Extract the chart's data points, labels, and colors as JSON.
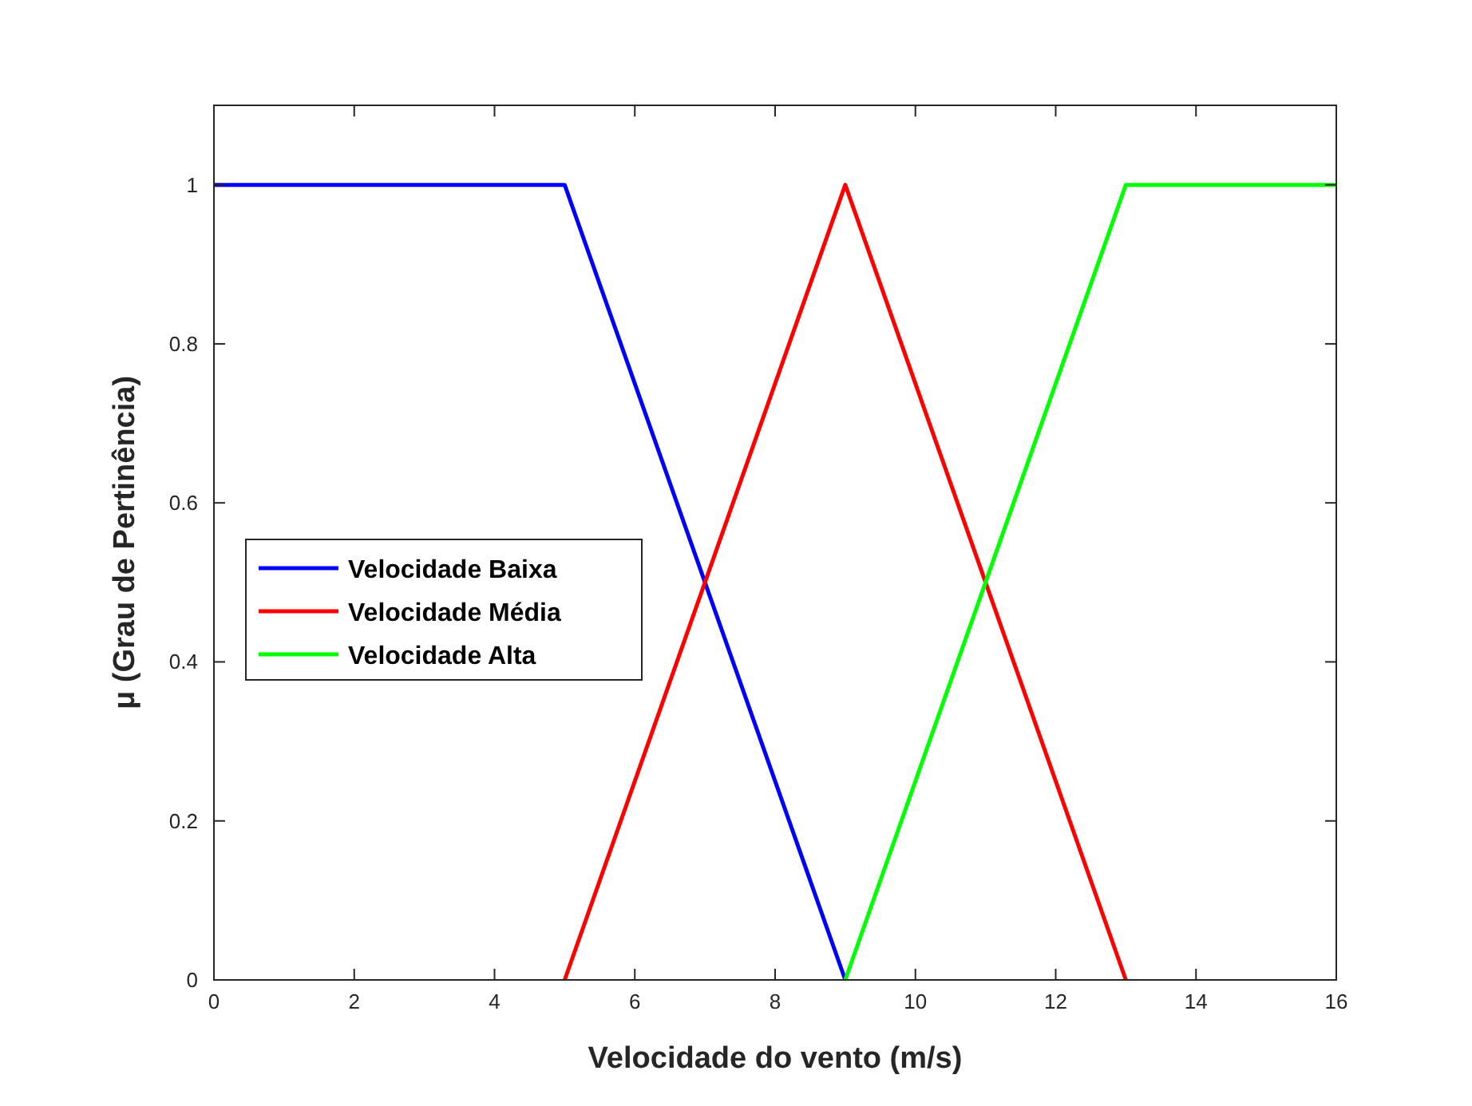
{
  "chart_data": {
    "type": "line",
    "xlabel": "Velocidade do vento (m/s)",
    "ylabel": "μ (Grau de Pertinência)",
    "xlim": [
      0,
      16
    ],
    "xticks": [
      0,
      2,
      4,
      6,
      8,
      10,
      12,
      14,
      16
    ],
    "ylim": [
      0,
      1.1
    ],
    "yticks": [
      0,
      0.2,
      0.4,
      0.6,
      0.8,
      1
    ],
    "legend": "left",
    "grid": false,
    "marker": "none",
    "line_style": "solid",
    "series": [
      {
        "name": "Velocidade Baixa",
        "color": "#0000ff",
        "x": [
          0,
          5,
          9
        ],
        "values": [
          1,
          1,
          0
        ]
      },
      {
        "name": "Velocidade Média",
        "color": "#ff0000",
        "x": [
          5,
          9,
          13
        ],
        "values": [
          0,
          1,
          0
        ]
      },
      {
        "name": "Velocidade Alta",
        "color": "#00ff00",
        "x": [
          9,
          13,
          16
        ],
        "values": [
          0,
          1,
          1
        ]
      }
    ]
  }
}
